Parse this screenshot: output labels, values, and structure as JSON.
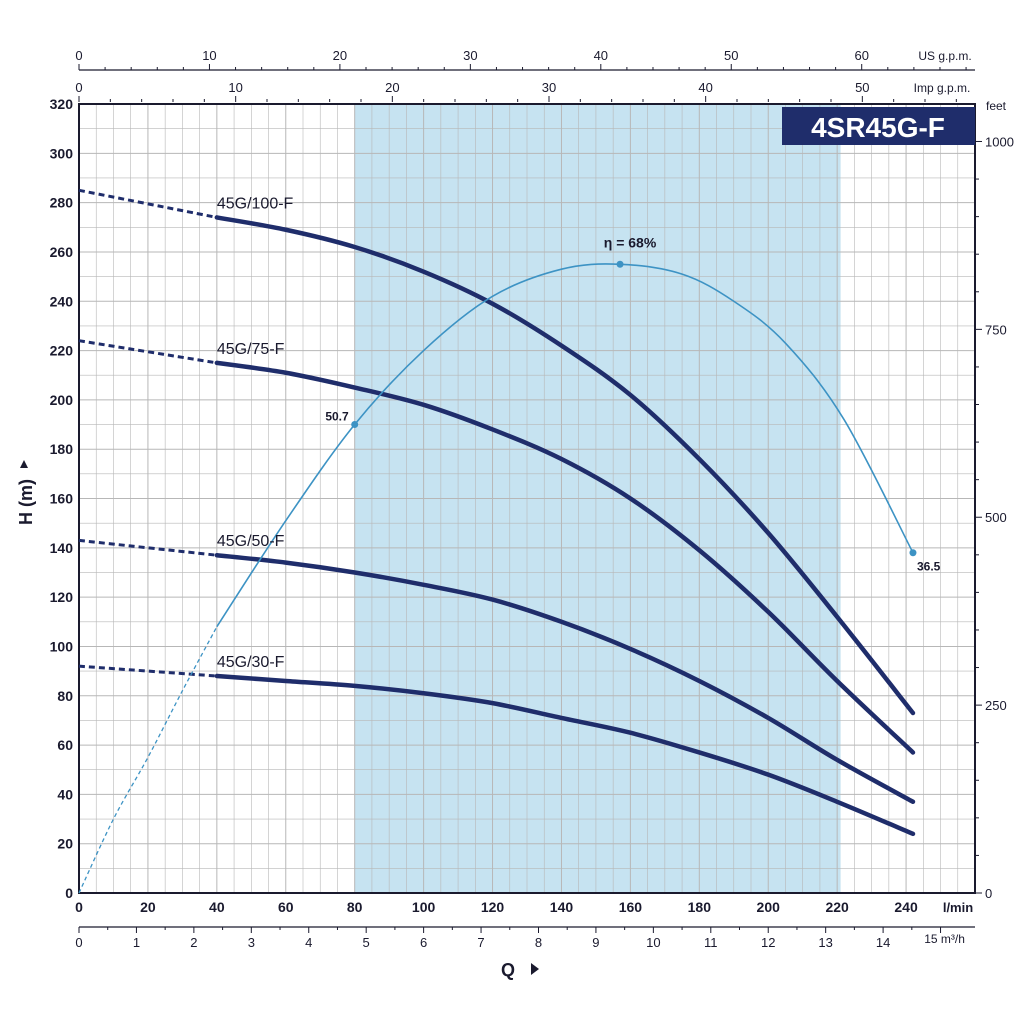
{
  "model_title": "4SR45G-F",
  "colors": {
    "curve": "#1f2d6b",
    "efficiency": "#3d93c4",
    "band": "#c6e3f1",
    "grid": "#b7b7b7",
    "axis": "#1a1a2e",
    "title_bg": "#1f2d6b"
  },
  "chart_data": {
    "type": "line",
    "title": "4SR45G-F",
    "xlabel": "Q",
    "ylabel": "H (m)",
    "xlim": [
      0,
      260
    ],
    "ylim": [
      0,
      320
    ],
    "grid": true,
    "x_unit": "l/min",
    "y_unit": "H (m)",
    "x_ticks": [
      0,
      20,
      40,
      60,
      80,
      100,
      120,
      140,
      160,
      180,
      200,
      220,
      240
    ],
    "y_ticks": [
      0,
      20,
      40,
      60,
      80,
      100,
      120,
      140,
      160,
      180,
      200,
      220,
      240,
      260,
      280,
      300,
      320
    ],
    "secondary_axes": {
      "top_us": {
        "unit": "US g.p.m.",
        "ticks": [
          0,
          10,
          20,
          30,
          40,
          50,
          60
        ]
      },
      "top_imp": {
        "unit": "Imp g.p.m.",
        "ticks": [
          0,
          10,
          20,
          30,
          40,
          50
        ]
      },
      "bottom_m3h": {
        "unit": "15 m³/h",
        "ticks": [
          0,
          1,
          2,
          3,
          4,
          5,
          6,
          7,
          8,
          9,
          10,
          11,
          12,
          13,
          14
        ]
      },
      "right_feet": {
        "unit": "feet",
        "ticks": [
          0,
          250,
          500,
          750,
          1000
        ]
      }
    },
    "recommended_range": [
      80,
      221
    ],
    "series": [
      {
        "name": "45G/100-F",
        "dashed_x": [
          0,
          40
        ],
        "dashed_y": [
          285,
          274
        ],
        "x": [
          40,
          60,
          80,
          100,
          120,
          140,
          160,
          180,
          200,
          220,
          242
        ],
        "y": [
          274,
          269,
          262,
          252,
          239,
          222,
          202,
          176,
          146,
          112,
          73
        ]
      },
      {
        "name": "45G/75-F",
        "dashed_x": [
          0,
          40
        ],
        "dashed_y": [
          224,
          215
        ],
        "x": [
          40,
          60,
          80,
          100,
          120,
          140,
          160,
          180,
          200,
          220,
          242
        ],
        "y": [
          215,
          211,
          205,
          198,
          188,
          176,
          160,
          139,
          114,
          86,
          57
        ]
      },
      {
        "name": "45G/50-F",
        "dashed_x": [
          0,
          40
        ],
        "dashed_y": [
          143,
          137
        ],
        "x": [
          40,
          60,
          80,
          100,
          120,
          140,
          160,
          180,
          200,
          220,
          242
        ],
        "y": [
          137,
          134,
          130,
          125,
          119,
          110,
          99,
          86,
          71,
          54,
          37
        ]
      },
      {
        "name": "45G/30-F",
        "dashed_x": [
          0,
          40
        ],
        "dashed_y": [
          92,
          88
        ],
        "x": [
          40,
          60,
          80,
          100,
          120,
          140,
          160,
          180,
          200,
          220,
          242
        ],
        "y": [
          88,
          86,
          84,
          81,
          77,
          71,
          65,
          57,
          48,
          37,
          24
        ]
      }
    ],
    "efficiency": {
      "label": "η = 68%",
      "dashed_x": [
        0,
        10,
        20,
        30,
        40
      ],
      "dashed_y": [
        0,
        30,
        55,
        82,
        108
      ],
      "x": [
        40,
        60,
        80,
        100,
        120,
        140,
        157,
        175,
        190,
        205,
        222,
        242
      ],
      "y": [
        108,
        151,
        190,
        220,
        242,
        253,
        255,
        251,
        240,
        223,
        192,
        138
      ],
      "points": [
        {
          "x": 80,
          "y": 190,
          "label": "50.7"
        },
        {
          "x": 157,
          "y": 255,
          "label": ""
        },
        {
          "x": 242,
          "y": 138,
          "label": "36.5"
        }
      ]
    }
  }
}
